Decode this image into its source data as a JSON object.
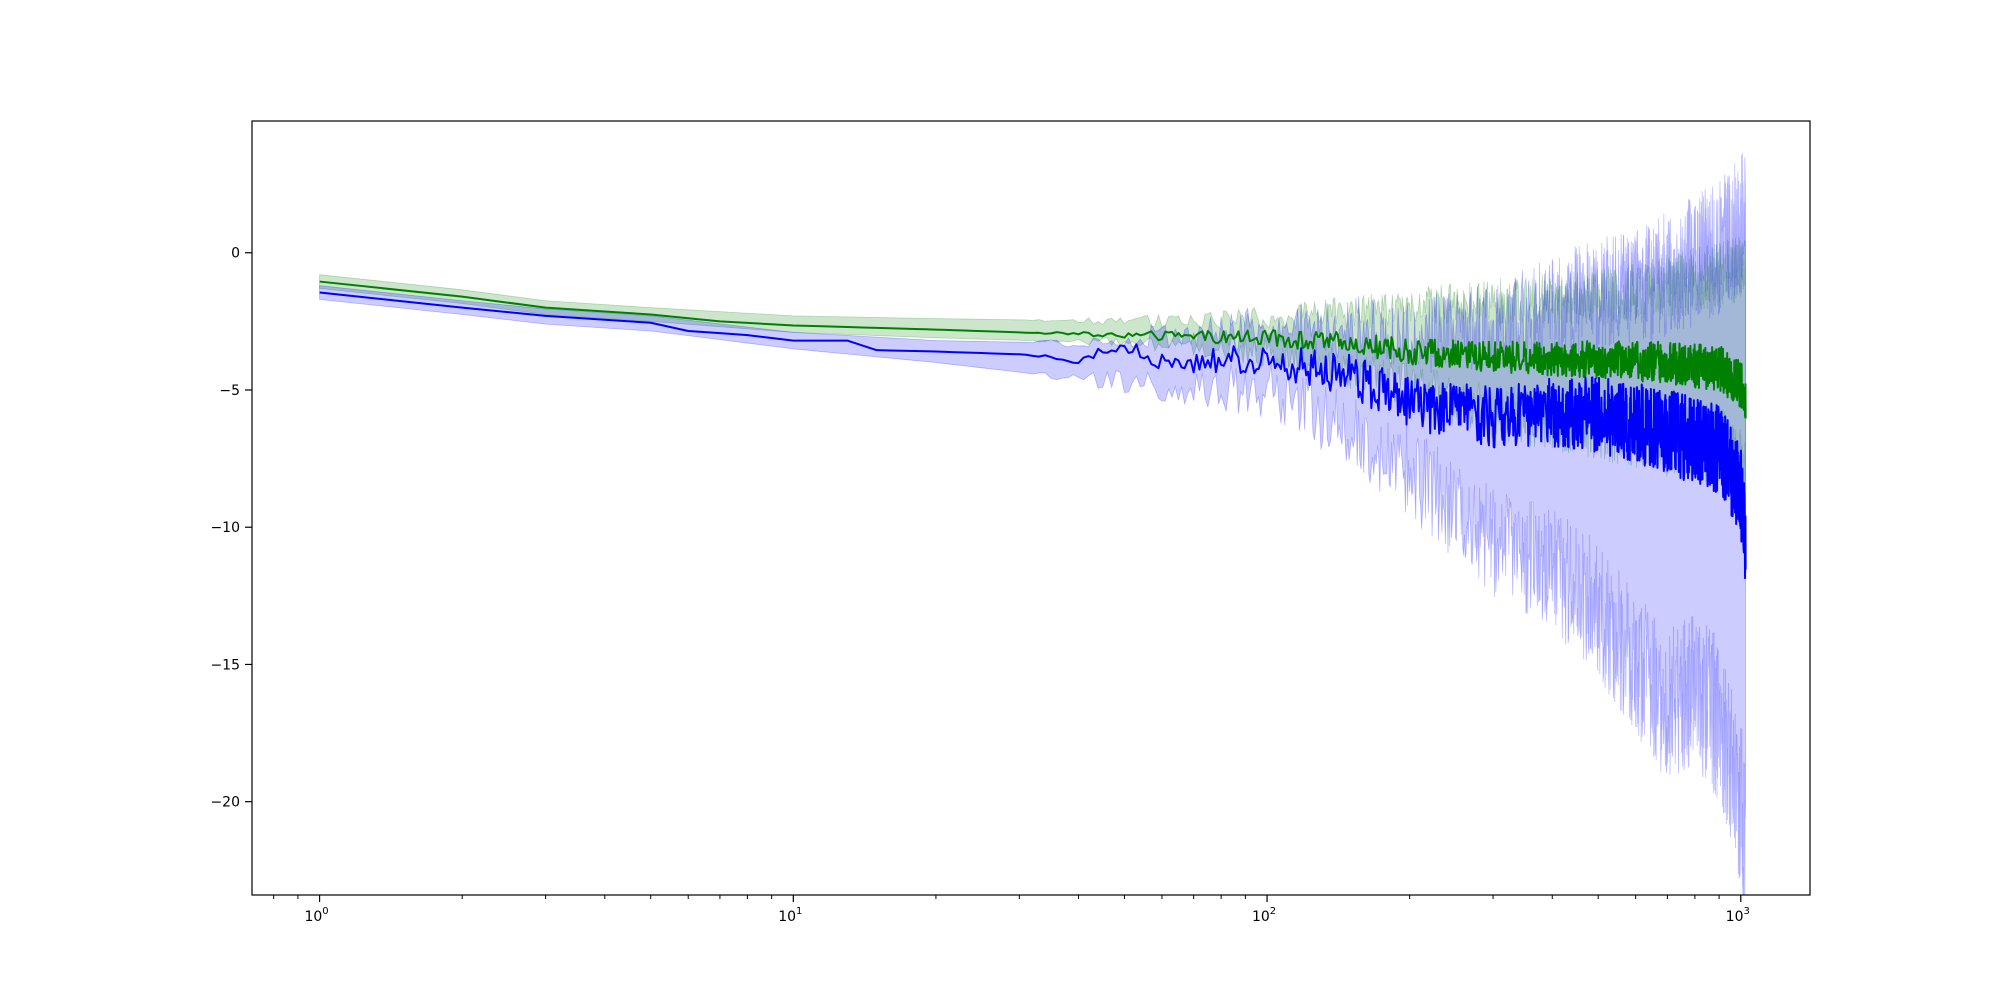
{
  "chart_data": {
    "type": "line",
    "title": "",
    "xlabel": "",
    "ylabel": "",
    "xscale": "log",
    "xlim": [
      0.72,
      1400
    ],
    "ylim": [
      -23.4,
      4.8
    ],
    "grid": false,
    "legend": "none",
    "x_ticks": [
      {
        "value": 1,
        "label": "10",
        "exp": "0"
      },
      {
        "value": 10,
        "label": "10",
        "exp": "1"
      },
      {
        "value": 100,
        "label": "10",
        "exp": "2"
      },
      {
        "value": 1000,
        "label": "10",
        "exp": "3"
      }
    ],
    "y_ticks": [
      0,
      -5,
      -10,
      -15,
      -20
    ],
    "y_tick_labels": [
      "0",
      "−5",
      "−10",
      "−15",
      "−20"
    ],
    "x_range": [
      1,
      1024
    ],
    "series": [
      {
        "color": "#008000",
        "band_color": "#008000",
        "band_opacity": 0.2,
        "keypoints": [
          [
            1,
            -1.05
          ],
          [
            2,
            -1.6
          ],
          [
            3,
            -2.0
          ],
          [
            5,
            -2.25
          ],
          [
            7,
            -2.5
          ],
          [
            10,
            -2.65
          ],
          [
            20,
            -2.8
          ],
          [
            30,
            -2.9
          ],
          [
            50,
            -3.0
          ],
          [
            70,
            -3.05
          ],
          [
            100,
            -3.1
          ],
          [
            150,
            -3.3
          ],
          [
            200,
            -3.6
          ],
          [
            300,
            -3.8
          ],
          [
            500,
            -3.9
          ],
          [
            700,
            -4.0
          ],
          [
            900,
            -4.2
          ],
          [
            1000,
            -4.8
          ],
          [
            1024,
            -5.3
          ]
        ],
        "lower_keypoints": [
          [
            1,
            -1.3
          ],
          [
            2,
            -1.85
          ],
          [
            3,
            -2.25
          ],
          [
            5,
            -2.5
          ],
          [
            10,
            -2.9
          ],
          [
            20,
            -3.1
          ],
          [
            50,
            -3.3
          ],
          [
            100,
            -3.6
          ],
          [
            200,
            -4.8
          ],
          [
            300,
            -5.8
          ],
          [
            500,
            -6.3
          ],
          [
            700,
            -6.8
          ],
          [
            900,
            -7.0
          ],
          [
            1000,
            -8.0
          ],
          [
            1024,
            -8.5
          ]
        ],
        "upper_keypoints": [
          [
            1,
            -0.8
          ],
          [
            2,
            -1.35
          ],
          [
            3,
            -1.75
          ],
          [
            5,
            -2.0
          ],
          [
            10,
            -2.3
          ],
          [
            20,
            -2.4
          ],
          [
            50,
            -2.5
          ],
          [
            100,
            -2.4
          ],
          [
            200,
            -2.0
          ],
          [
            300,
            -1.8
          ],
          [
            500,
            -1.6
          ],
          [
            700,
            -1.2
          ],
          [
            900,
            -0.8
          ],
          [
            1000,
            -0.5
          ],
          [
            1024,
            -0.6
          ]
        ]
      },
      {
        "color": "#0000ff",
        "band_color": "#0000ff",
        "band_opacity": 0.2,
        "keypoints": [
          [
            1,
            -1.45
          ],
          [
            2,
            -2.0
          ],
          [
            3,
            -2.3
          ],
          [
            5,
            -2.55
          ],
          [
            6,
            -2.85
          ],
          [
            8,
            -3.0
          ],
          [
            10,
            -3.2
          ],
          [
            13,
            -3.2
          ],
          [
            15,
            -3.55
          ],
          [
            20,
            -3.6
          ],
          [
            30,
            -3.7
          ],
          [
            40,
            -3.9
          ],
          [
            50,
            -3.4
          ],
          [
            60,
            -4.0
          ],
          [
            80,
            -3.9
          ],
          [
            100,
            -3.9
          ],
          [
            150,
            -4.5
          ],
          [
            200,
            -5.5
          ],
          [
            300,
            -6.0
          ],
          [
            400,
            -5.8
          ],
          [
            500,
            -5.9
          ],
          [
            700,
            -6.5
          ],
          [
            900,
            -7.2
          ],
          [
            1000,
            -8.6
          ],
          [
            1024,
            -10.5
          ]
        ],
        "lower_keypoints": [
          [
            1,
            -1.7
          ],
          [
            2,
            -2.25
          ],
          [
            3,
            -2.6
          ],
          [
            5,
            -2.85
          ],
          [
            10,
            -3.5
          ],
          [
            20,
            -4.0
          ],
          [
            40,
            -4.6
          ],
          [
            60,
            -4.8
          ],
          [
            100,
            -5.0
          ],
          [
            150,
            -6.5
          ],
          [
            200,
            -8.0
          ],
          [
            300,
            -10.5
          ],
          [
            400,
            -11.5
          ],
          [
            500,
            -13.0
          ],
          [
            600,
            -15.0
          ],
          [
            700,
            -16.5
          ],
          [
            800,
            -16.0
          ],
          [
            900,
            -17.0
          ],
          [
            1000,
            -20.0
          ],
          [
            1024,
            -22.0
          ]
        ],
        "upper_keypoints": [
          [
            1,
            -1.2
          ],
          [
            2,
            -1.75
          ],
          [
            3,
            -2.05
          ],
          [
            5,
            -2.3
          ],
          [
            10,
            -2.9
          ],
          [
            20,
            -3.2
          ],
          [
            40,
            -3.3
          ],
          [
            60,
            -3.0
          ],
          [
            100,
            -2.8
          ],
          [
            150,
            -2.7
          ],
          [
            200,
            -3.0
          ],
          [
            300,
            -2.8
          ],
          [
            400,
            -2.0
          ],
          [
            500,
            -1.5
          ],
          [
            700,
            -0.8
          ],
          [
            900,
            0.2
          ],
          [
            1000,
            1.0
          ],
          [
            1024,
            1.2
          ]
        ]
      }
    ]
  }
}
